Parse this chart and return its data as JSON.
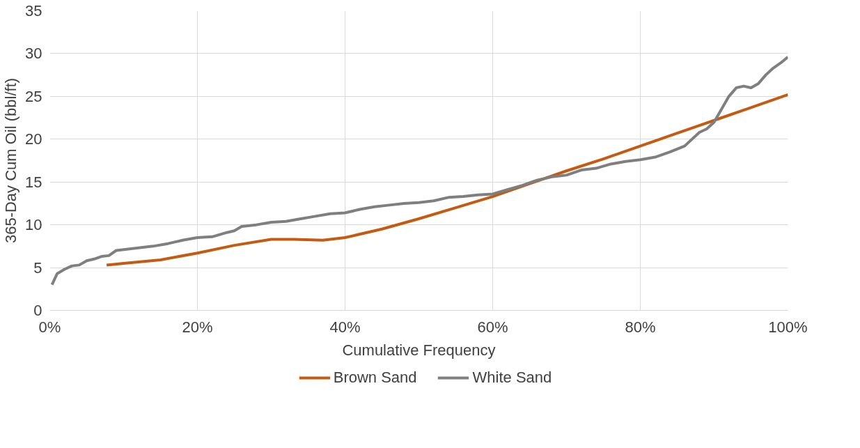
{
  "chart_data": {
    "type": "line",
    "xlabel": "Cumulative Frequency",
    "ylabel": "365-Day Cum Oil (bbl/ft)",
    "xlim": [
      0,
      100
    ],
    "ylim": [
      0,
      35
    ],
    "xticks": [
      {
        "value": 0,
        "label": "0%"
      },
      {
        "value": 20,
        "label": "20%"
      },
      {
        "value": 40,
        "label": "40%"
      },
      {
        "value": 60,
        "label": "60%"
      },
      {
        "value": 80,
        "label": "80%"
      },
      {
        "value": 100,
        "label": "100%"
      }
    ],
    "yticks": [
      0,
      5,
      10,
      15,
      20,
      25,
      30,
      35
    ],
    "grid": true,
    "legend": "bottom",
    "marker": "none",
    "line_style": "solid",
    "series": [
      {
        "name": "Brown Sand",
        "color": "#c55a11",
        "x": [
          7.7,
          10,
          15,
          20,
          25,
          30,
          33,
          37,
          40,
          45,
          50,
          55,
          60,
          65,
          70,
          75,
          80,
          85,
          90,
          95,
          100
        ],
        "values": [
          5.3,
          5.5,
          5.9,
          6.7,
          7.6,
          8.3,
          8.3,
          8.2,
          8.5,
          9.5,
          10.7,
          12,
          13.3,
          14.8,
          16.3,
          17.7,
          19.2,
          20.7,
          22.2,
          23.7,
          25.2
        ]
      },
      {
        "name": "White Sand",
        "color": "#7f7f7f",
        "x": [
          0.3,
          1,
          2,
          3,
          4,
          5,
          6,
          7,
          8,
          9,
          10,
          12,
          14,
          16,
          18,
          20,
          22,
          24,
          25,
          26,
          28,
          30,
          32,
          34,
          36,
          38,
          40,
          42,
          44,
          46,
          48,
          50,
          52,
          54,
          56,
          58,
          60,
          62,
          64,
          66,
          68,
          70,
          72,
          74,
          76,
          78,
          80,
          82,
          84,
          86,
          88,
          89,
          90,
          91,
          92,
          93,
          94,
          95,
          96,
          97,
          98,
          99,
          100
        ],
        "values": [
          3,
          4.3,
          4.8,
          5.2,
          5.3,
          5.8,
          6,
          6.3,
          6.4,
          7,
          7.1,
          7.3,
          7.5,
          7.8,
          8.2,
          8.5,
          8.6,
          9.1,
          9.3,
          9.8,
          10,
          10.3,
          10.4,
          10.7,
          11,
          11.3,
          11.4,
          11.8,
          12.1,
          12.3,
          12.5,
          12.6,
          12.8,
          13.2,
          13.3,
          13.5,
          13.6,
          14.1,
          14.6,
          15.2,
          15.6,
          15.8,
          16.4,
          16.6,
          17.1,
          17.4,
          17.6,
          17.9,
          18.5,
          19.2,
          20.8,
          21.2,
          22,
          23.5,
          25,
          26,
          26.2,
          26,
          26.5,
          27.5,
          28.3,
          28.9,
          29.6
        ]
      }
    ]
  }
}
